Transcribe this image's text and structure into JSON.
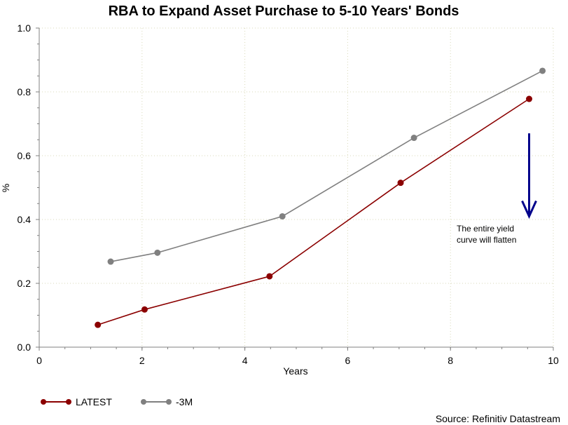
{
  "chart_data": {
    "type": "line",
    "title": "RBA to Expand Asset Purchase to 5-10 Years' Bonds",
    "xlabel": "Years",
    "ylabel": "%",
    "xlim": [
      0,
      10
    ],
    "ylim": [
      0,
      1.0
    ],
    "x_ticks": [
      "0",
      "2",
      "4",
      "6",
      "8",
      "10"
    ],
    "y_ticks": [
      "0.0",
      "0.2",
      "0.4",
      "0.6",
      "0.8",
      "1.0"
    ],
    "grid": true,
    "legend_position": "bottom-left",
    "series": [
      {
        "name": "LATEST",
        "color": "#8b0000",
        "x": [
          1.14,
          2.05,
          4.48,
          7.03,
          9.53
        ],
        "y": [
          0.07,
          0.118,
          0.222,
          0.515,
          0.778
        ]
      },
      {
        "name": "-3M",
        "color": "#808080",
        "x": [
          1.39,
          2.3,
          4.73,
          7.29,
          9.79
        ],
        "y": [
          0.268,
          0.296,
          0.41,
          0.656,
          0.866
        ]
      }
    ],
    "annotation": {
      "lines": [
        "The entire yield",
        "curve will flatten"
      ],
      "arrow_color": "#00008b",
      "arrow_x": 9.53,
      "arrow_y_from": 0.67,
      "arrow_y_to": 0.41
    },
    "source": "Source: Refinitiv Datastream"
  }
}
